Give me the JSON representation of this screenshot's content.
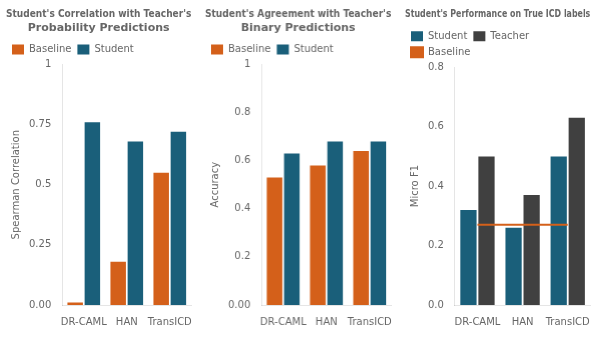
{
  "chart_data": [
    {
      "type": "bar",
      "title": "Student's Correlation with Teacher's\nProbability Predictions",
      "categories": [
        "DR-CAML",
        "HAN",
        "TransICD"
      ],
      "series": [
        {
          "name": "Baseline",
          "color": "#d4601a",
          "values": [
            0.01,
            0.18,
            0.55
          ]
        },
        {
          "name": "Student",
          "color": "#1a5f7a",
          "values": [
            0.76,
            0.68,
            0.72
          ]
        }
      ],
      "ylabel": "Spearman Correlation",
      "ylim": [
        0,
        1.0
      ],
      "yticks": [
        {
          "value": 0,
          "label": "0.00"
        },
        0.25,
        0.5,
        0.75,
        1
      ],
      "grid": false,
      "legend": "upper left"
    },
    {
      "type": "bar",
      "title": "Student's Agreement with Teacher's\nBinary Predictions",
      "categories": [
        "DR-CAML",
        "HAN",
        "TransICD"
      ],
      "series": [
        {
          "name": "Baseline",
          "color": "#d4601a",
          "values": [
            0.53,
            0.58,
            0.64
          ]
        },
        {
          "name": "Student",
          "color": "#1a5f7a",
          "values": [
            0.63,
            0.68,
            0.68
          ]
        }
      ],
      "ylabel": "Accuracy",
      "ylim": [
        0,
        1.0
      ],
      "yticks": [
        {
          "value": 0,
          "label": "0.00"
        },
        0.2,
        0.4,
        0.6,
        0.8,
        1
      ],
      "grid": false,
      "legend": "upper left"
    },
    {
      "type": "bar",
      "title": "Student's Performance on True ICD labels",
      "categories": [
        "DR-CAML",
        "HAN",
        "TransICD"
      ],
      "series": [
        {
          "name": "Student",
          "color": "#1a5f7a",
          "values": [
            0.32,
            0.26,
            0.5
          ]
        },
        {
          "name": "Teacher",
          "color": "#404040",
          "values": [
            0.5,
            0.37,
            0.63
          ]
        },
        {
          "name": "Baseline",
          "color": "#d4601a",
          "type": "line",
          "values": [
            0.27,
            0.27,
            0.27
          ]
        }
      ],
      "ylabel": "Micro F1",
      "ylim": [
        0,
        0.8
      ],
      "yticks": [
        {
          "value": 0,
          "label": "0.0"
        },
        0.2,
        0.4,
        0.6,
        0.8
      ],
      "grid": false,
      "legend": "upper left"
    }
  ]
}
